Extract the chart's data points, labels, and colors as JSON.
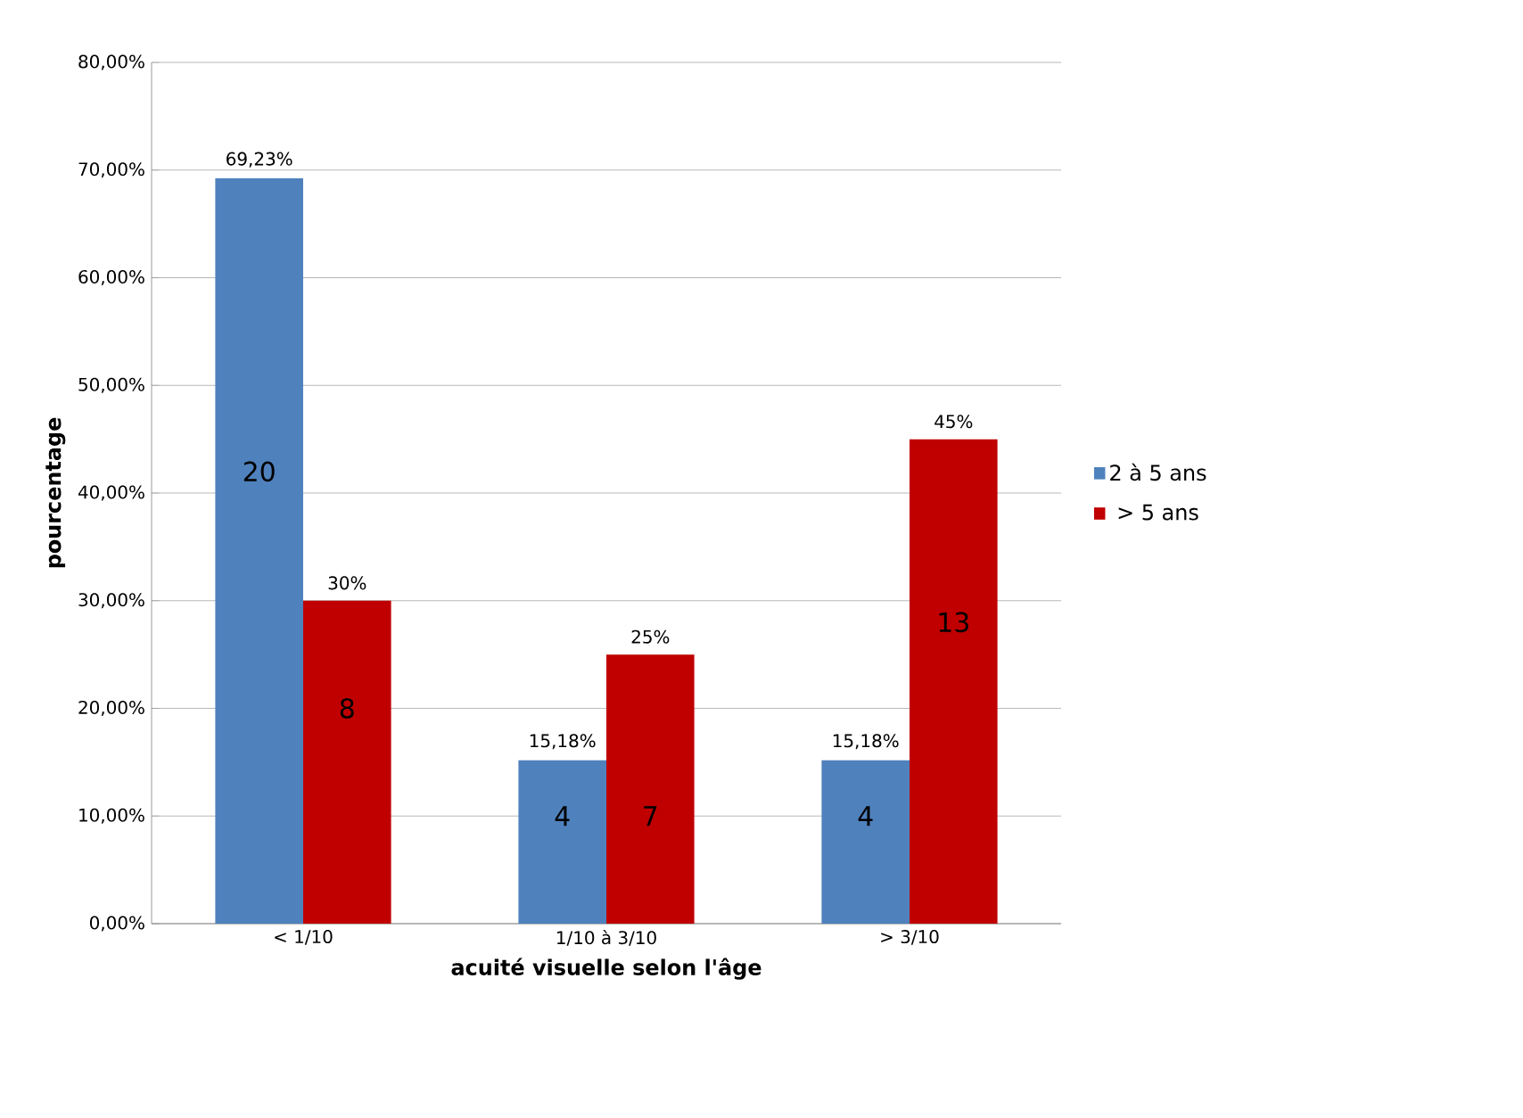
{
  "chart_data": {
    "type": "bar",
    "xlabel": "acuité visuelle selon l'âge",
    "ylabel": "pourcentage",
    "categories": [
      "< 1/10",
      "1/10 à 3/10",
      "> 3/10"
    ],
    "series": [
      {
        "name": "2 à 5 ans",
        "color": "#4f81bd",
        "values": [
          69.23,
          15.18,
          15.18
        ],
        "value_labels": [
          "69,23%",
          "15,18%",
          "15,18%"
        ]
      },
      {
        "name": "> 5 ans",
        "color": "#c00000",
        "values": [
          30,
          25,
          45
        ],
        "value_labels": [
          "30%",
          "25%",
          "45%"
        ]
      }
    ],
    "annotations": [
      {
        "text": "20",
        "x": "< 1/10",
        "y": 42
      },
      {
        "text": "8",
        "x": "< 1/10",
        "y": 20
      },
      {
        "text": "4",
        "x": "1/10 à 3/10",
        "y": 10
      },
      {
        "text": "7",
        "x": "1/10 à 3/10",
        "y": 10
      },
      {
        "text": "4",
        "x": "> 3/10",
        "y": 10
      },
      {
        "text": "13",
        "x": "> 3/10",
        "y": 28
      }
    ],
    "ylim": [
      0,
      80
    ],
    "yticks": [
      {
        "value": 0,
        "label": "0,00%"
      },
      {
        "value": 10,
        "label": "10,00%"
      },
      {
        "value": 20,
        "label": "20,00%"
      },
      {
        "value": 30,
        "label": "30,00%"
      },
      {
        "value": 40,
        "label": "40,00%"
      },
      {
        "value": 50,
        "label": "50,00%"
      },
      {
        "value": 60,
        "label": "60,00%"
      },
      {
        "value": 70,
        "label": "70,00%"
      },
      {
        "value": 80,
        "label": "80,00%"
      }
    ],
    "grid": "y",
    "legend": "right"
  }
}
